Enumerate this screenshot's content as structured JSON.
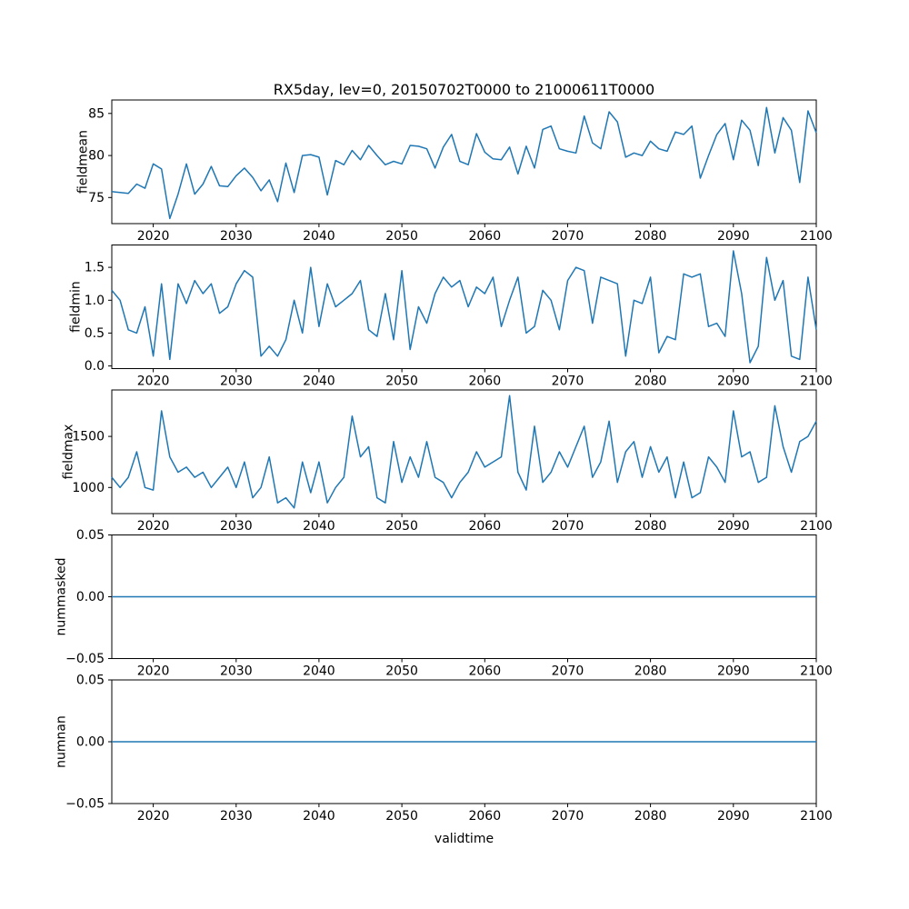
{
  "figure": {
    "title": "RX5day, lev=0, 20150702T0000 to 21000611T0000",
    "xlabel": "validtime",
    "background": "#ffffff",
    "line_color": "#1f77b4",
    "axis_color": "#000000",
    "xlim": [
      2015,
      2100
    ],
    "xticks": [
      2020,
      2030,
      2040,
      2050,
      2060,
      2070,
      2080,
      2090,
      2100
    ],
    "xtick_labels": [
      "2020",
      "2030",
      "2040",
      "2050",
      "2060",
      "2070",
      "2080",
      "2090",
      "2100"
    ]
  },
  "chart_data": [
    {
      "type": "line",
      "name": "fieldmean",
      "ylabel": "fieldmean",
      "ylim": [
        71.9,
        86.6
      ],
      "yticks": [
        75,
        80,
        85
      ],
      "ytick_labels": [
        "75",
        "80",
        "85"
      ],
      "x_start": 2015,
      "x_step": 1,
      "values": [
        75.7,
        75.6,
        75.5,
        76.6,
        76.1,
        79.0,
        78.4,
        72.5,
        75.4,
        79.0,
        75.4,
        76.6,
        78.7,
        76.4,
        76.3,
        77.6,
        78.5,
        77.4,
        75.8,
        77.1,
        74.5,
        79.1,
        75.6,
        80.0,
        80.1,
        79.8,
        75.3,
        79.4,
        78.9,
        80.6,
        79.5,
        81.2,
        80.0,
        78.9,
        79.3,
        79.0,
        81.2,
        81.1,
        80.8,
        78.5,
        81.0,
        82.5,
        79.3,
        78.9,
        82.6,
        80.4,
        79.6,
        79.5,
        81.0,
        77.8,
        81.1,
        78.5,
        83.1,
        83.5,
        80.8,
        80.5,
        80.3,
        84.7,
        81.5,
        80.8,
        85.2,
        84.0,
        79.8,
        80.3,
        80.0,
        81.7,
        80.8,
        80.5,
        82.8,
        82.5,
        83.5,
        77.3,
        80.0,
        82.5,
        83.8,
        79.5,
        84.2,
        83.0,
        78.8,
        85.7,
        80.3,
        84.5,
        83.0,
        76.8,
        85.3,
        82.7
      ]
    },
    {
      "type": "line",
      "name": "fieldmin",
      "ylabel": "fieldmin",
      "ylim": [
        -0.04,
        1.84
      ],
      "yticks": [
        0.0,
        0.5,
        1.0,
        1.5
      ],
      "ytick_labels": [
        "0.0",
        "0.5",
        "1.0",
        "1.5"
      ],
      "x_start": 2015,
      "x_step": 1,
      "values": [
        1.15,
        1.0,
        0.55,
        0.5,
        0.9,
        0.15,
        1.25,
        0.1,
        1.25,
        0.95,
        1.3,
        1.1,
        1.25,
        0.8,
        0.9,
        1.25,
        1.45,
        1.35,
        0.15,
        0.3,
        0.15,
        0.4,
        1.0,
        0.5,
        1.5,
        0.6,
        1.25,
        0.9,
        1.0,
        1.1,
        1.3,
        0.55,
        0.45,
        1.1,
        0.4,
        1.45,
        0.25,
        0.9,
        0.65,
        1.1,
        1.35,
        1.2,
        1.3,
        0.9,
        1.2,
        1.1,
        1.35,
        0.6,
        1.0,
        1.35,
        0.5,
        0.6,
        1.15,
        1.0,
        0.55,
        1.3,
        1.5,
        1.45,
        0.65,
        1.35,
        1.3,
        1.25,
        0.15,
        1.0,
        0.95,
        1.35,
        0.2,
        0.45,
        0.4,
        1.4,
        1.35,
        1.4,
        0.6,
        0.65,
        0.45,
        1.75,
        1.1,
        0.05,
        0.3,
        1.65,
        1.0,
        1.3,
        0.15,
        0.1,
        1.35,
        0.55
      ]
    },
    {
      "type": "line",
      "name": "fieldmax",
      "ylabel": "fieldmax",
      "ylim": [
        745,
        1955
      ],
      "yticks": [
        1000,
        1500
      ],
      "ytick_labels": [
        "1000",
        "1500"
      ],
      "x_start": 2015,
      "x_step": 1,
      "values": [
        1100,
        1000,
        1100,
        1350,
        1000,
        975,
        1750,
        1300,
        1150,
        1200,
        1100,
        1150,
        1000,
        1100,
        1200,
        1000,
        1250,
        900,
        1000,
        1300,
        850,
        900,
        800,
        1250,
        950,
        1250,
        850,
        1000,
        1100,
        1700,
        1300,
        1400,
        900,
        850,
        1450,
        1050,
        1300,
        1100,
        1450,
        1100,
        1050,
        900,
        1050,
        1150,
        1350,
        1200,
        1250,
        1300,
        1900,
        1150,
        975,
        1600,
        1050,
        1150,
        1350,
        1200,
        1400,
        1600,
        1100,
        1250,
        1650,
        1050,
        1350,
        1450,
        1100,
        1400,
        1150,
        1300,
        900,
        1250,
        900,
        950,
        1300,
        1200,
        1050,
        1750,
        1300,
        1350,
        1050,
        1100,
        1800,
        1400,
        1150,
        1450,
        1500,
        1650
      ]
    },
    {
      "type": "line",
      "name": "nummasked",
      "ylabel": "nummasked",
      "ylim": [
        -0.05,
        0.05
      ],
      "yticks": [
        -0.05,
        0.0,
        0.05
      ],
      "ytick_labels": [
        "−0.05",
        "0.00",
        "0.05"
      ],
      "x_start": 2015,
      "x_step": 1,
      "values_constant": 0,
      "n": 86
    },
    {
      "type": "line",
      "name": "numnan",
      "ylabel": "numnan",
      "ylim": [
        -0.05,
        0.05
      ],
      "yticks": [
        -0.05,
        0.0,
        0.05
      ],
      "ytick_labels": [
        "−0.05",
        "0.00",
        "0.05"
      ],
      "x_start": 2015,
      "x_step": 1,
      "values_constant": 0,
      "n": 86
    }
  ]
}
